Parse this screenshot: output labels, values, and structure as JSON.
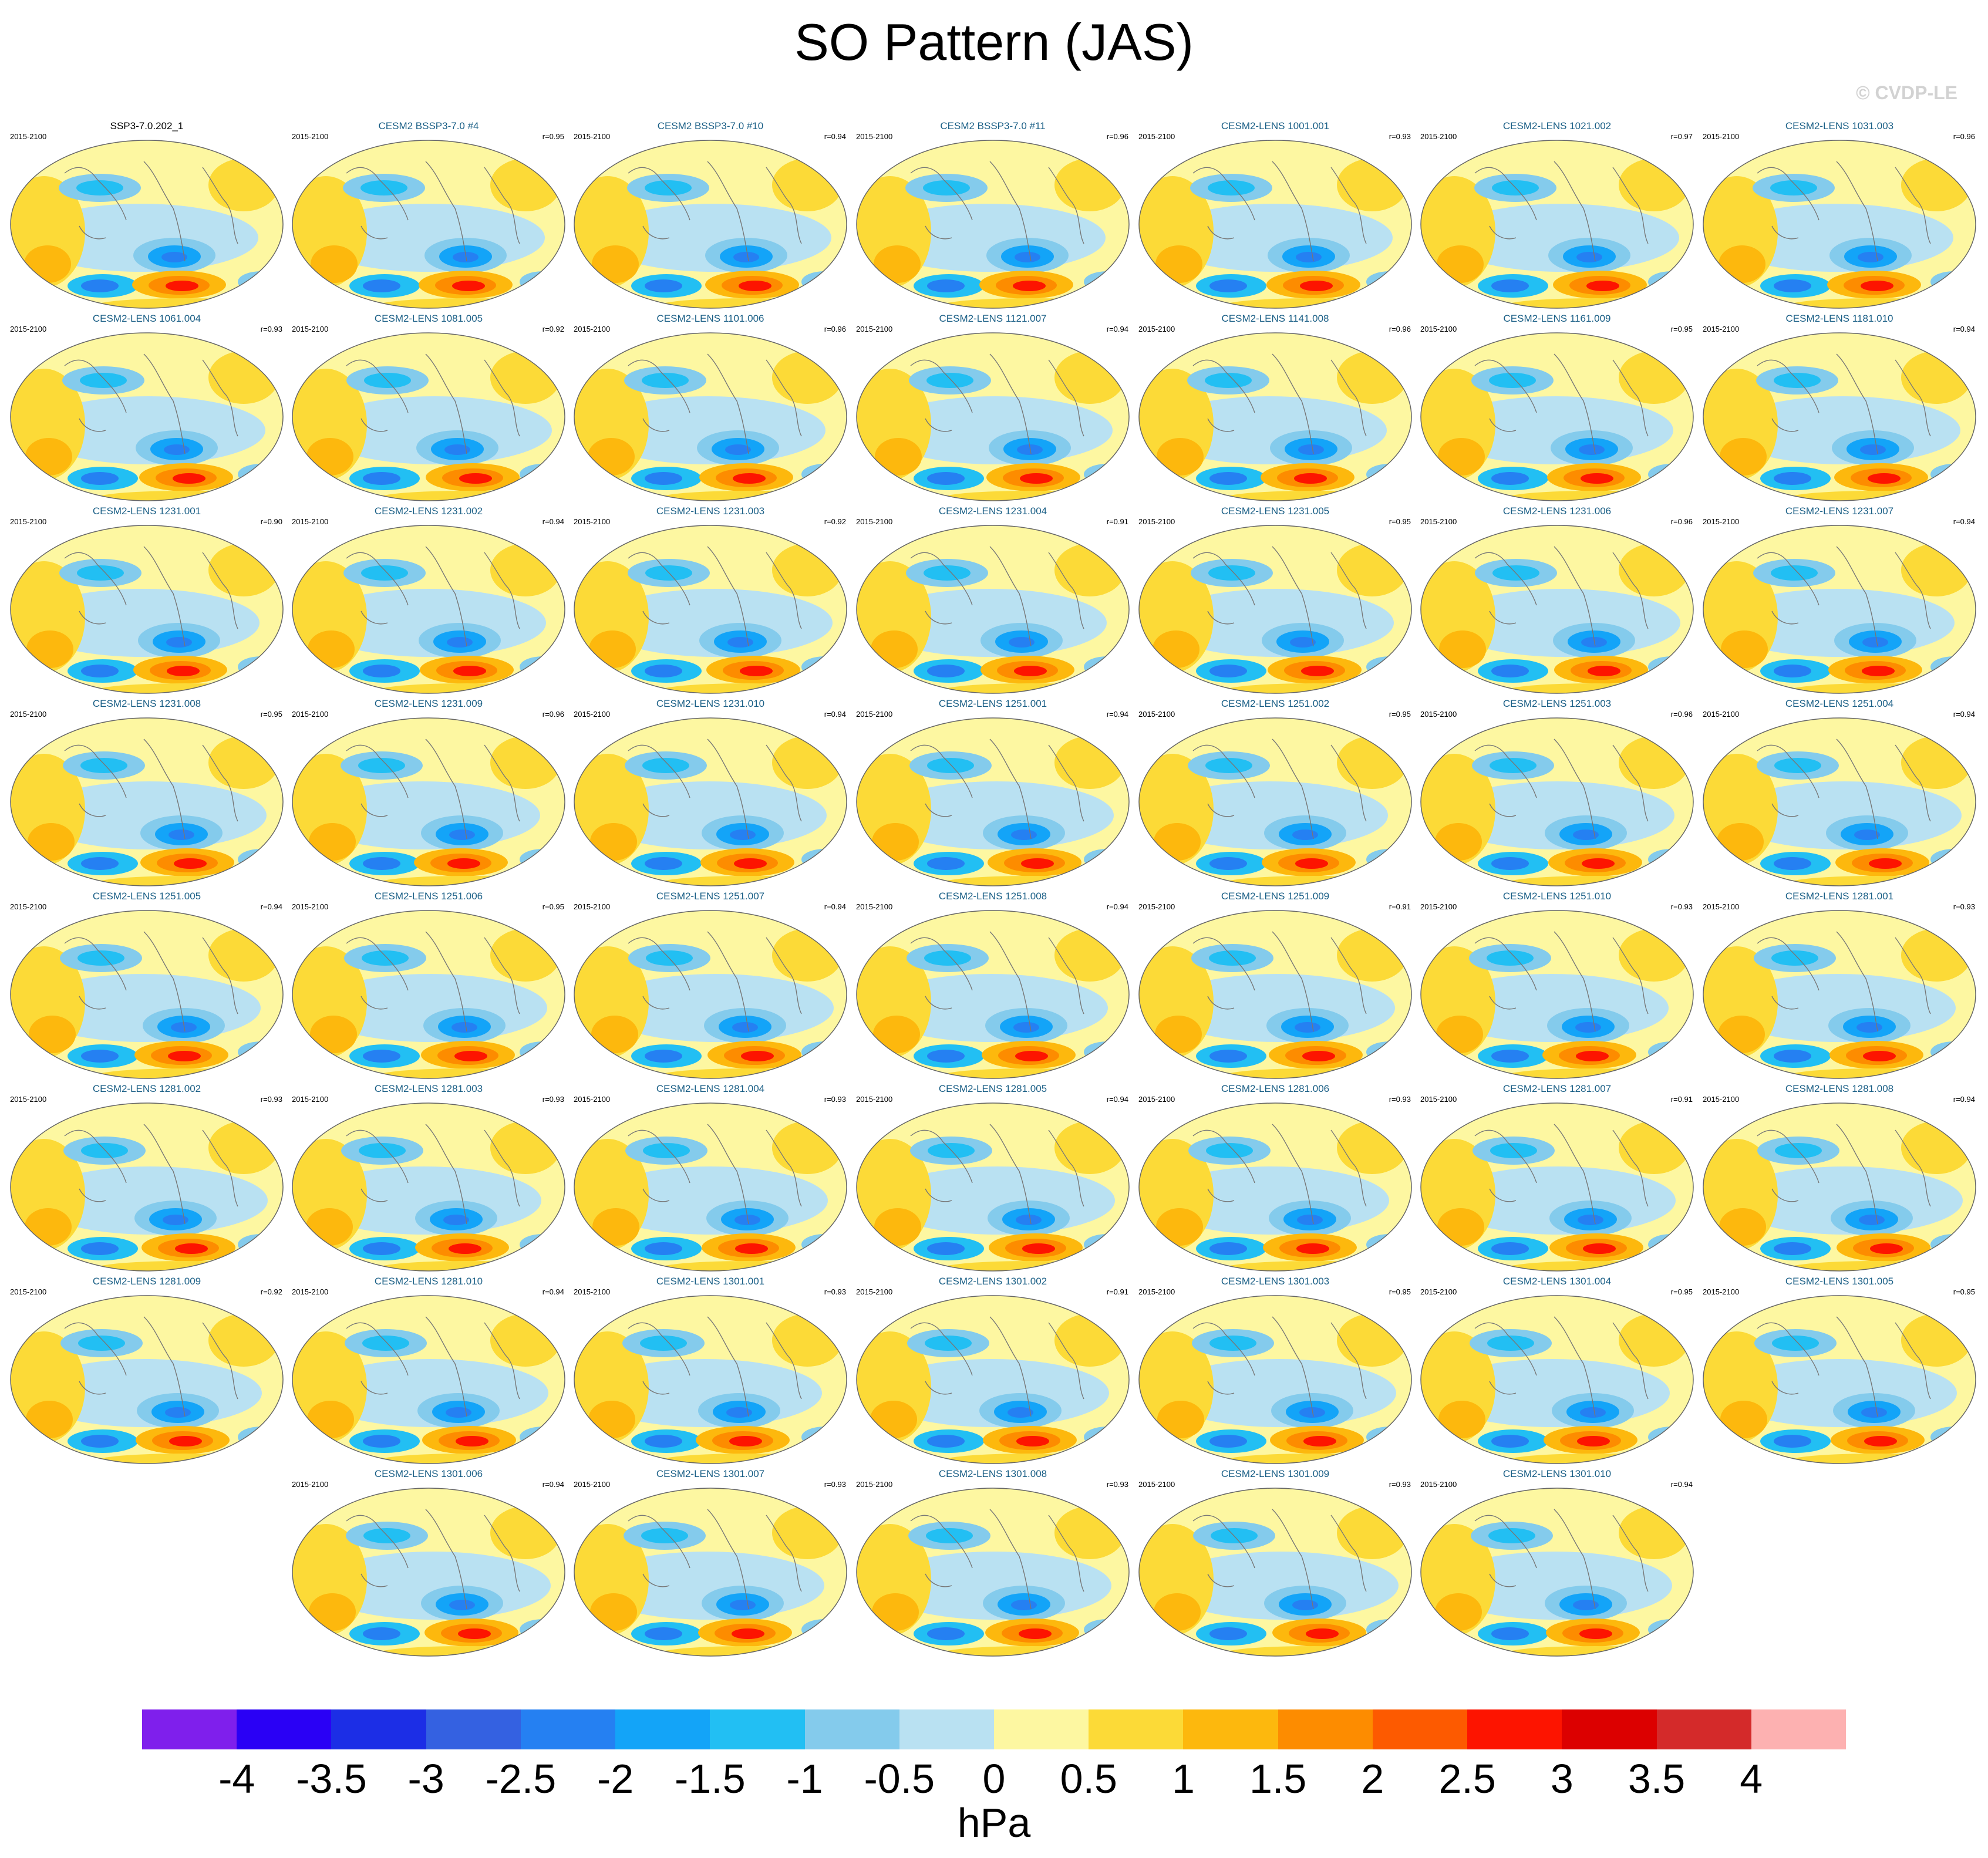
{
  "title": "SO Pattern (JAS)",
  "watermark": "© CVDP-LE",
  "years": "2015-2100",
  "panels": [
    {
      "title": "SSP3-7.0.202_1",
      "r": ""
    },
    {
      "title": "CESM2 BSSP3-7.0 #4",
      "r": "r=0.95"
    },
    {
      "title": "CESM2 BSSP3-7.0 #10",
      "r": "r=0.94"
    },
    {
      "title": "CESM2 BSSP3-7.0 #11",
      "r": "r=0.96"
    },
    {
      "title": "CESM2-LENS 1001.001",
      "r": "r=0.93"
    },
    {
      "title": "CESM2-LENS 1021.002",
      "r": "r=0.97"
    },
    {
      "title": "CESM2-LENS 1031.003",
      "r": "r=0.96"
    },
    {
      "title": "CESM2-LENS 1061.004",
      "r": "r=0.93"
    },
    {
      "title": "CESM2-LENS 1081.005",
      "r": "r=0.92"
    },
    {
      "title": "CESM2-LENS 1101.006",
      "r": "r=0.96"
    },
    {
      "title": "CESM2-LENS 1121.007",
      "r": "r=0.94"
    },
    {
      "title": "CESM2-LENS 1141.008",
      "r": "r=0.96"
    },
    {
      "title": "CESM2-LENS 1161.009",
      "r": "r=0.95"
    },
    {
      "title": "CESM2-LENS 1181.010",
      "r": "r=0.94"
    },
    {
      "title": "CESM2-LENS 1231.001",
      "r": "r=0.90"
    },
    {
      "title": "CESM2-LENS 1231.002",
      "r": "r=0.94"
    },
    {
      "title": "CESM2-LENS 1231.003",
      "r": "r=0.92"
    },
    {
      "title": "CESM2-LENS 1231.004",
      "r": "r=0.91"
    },
    {
      "title": "CESM2-LENS 1231.005",
      "r": "r=0.95"
    },
    {
      "title": "CESM2-LENS 1231.006",
      "r": "r=0.96"
    },
    {
      "title": "CESM2-LENS 1231.007",
      "r": "r=0.94"
    },
    {
      "title": "CESM2-LENS 1231.008",
      "r": "r=0.95"
    },
    {
      "title": "CESM2-LENS 1231.009",
      "r": "r=0.96"
    },
    {
      "title": "CESM2-LENS 1231.010",
      "r": "r=0.94"
    },
    {
      "title": "CESM2-LENS 1251.001",
      "r": "r=0.94"
    },
    {
      "title": "CESM2-LENS 1251.002",
      "r": "r=0.95"
    },
    {
      "title": "CESM2-LENS 1251.003",
      "r": "r=0.96"
    },
    {
      "title": "CESM2-LENS 1251.004",
      "r": "r=0.94"
    },
    {
      "title": "CESM2-LENS 1251.005",
      "r": "r=0.94"
    },
    {
      "title": "CESM2-LENS 1251.006",
      "r": "r=0.95"
    },
    {
      "title": "CESM2-LENS 1251.007",
      "r": "r=0.94"
    },
    {
      "title": "CESM2-LENS 1251.008",
      "r": "r=0.94"
    },
    {
      "title": "CESM2-LENS 1251.009",
      "r": "r=0.91"
    },
    {
      "title": "CESM2-LENS 1251.010",
      "r": "r=0.93"
    },
    {
      "title": "CESM2-LENS 1281.001",
      "r": "r=0.93"
    },
    {
      "title": "CESM2-LENS 1281.002",
      "r": "r=0.93"
    },
    {
      "title": "CESM2-LENS 1281.003",
      "r": "r=0.93"
    },
    {
      "title": "CESM2-LENS 1281.004",
      "r": "r=0.93"
    },
    {
      "title": "CESM2-LENS 1281.005",
      "r": "r=0.94"
    },
    {
      "title": "CESM2-LENS 1281.006",
      "r": "r=0.93"
    },
    {
      "title": "CESM2-LENS 1281.007",
      "r": "r=0.91"
    },
    {
      "title": "CESM2-LENS 1281.008",
      "r": "r=0.94"
    },
    {
      "title": "CESM2-LENS 1281.009",
      "r": "r=0.92"
    },
    {
      "title": "CESM2-LENS 1281.010",
      "r": "r=0.94"
    },
    {
      "title": "CESM2-LENS 1301.001",
      "r": "r=0.93"
    },
    {
      "title": "CESM2-LENS 1301.002",
      "r": "r=0.91"
    },
    {
      "title": "CESM2-LENS 1301.003",
      "r": "r=0.95"
    },
    {
      "title": "CESM2-LENS 1301.004",
      "r": "r=0.95"
    },
    {
      "title": "CESM2-LENS 1301.005",
      "r": "r=0.95"
    },
    {
      "title": "CESM2-LENS 1301.006",
      "r": "r=0.94"
    },
    {
      "title": "CESM2-LENS 1301.007",
      "r": "r=0.93"
    },
    {
      "title": "CESM2-LENS 1301.008",
      "r": "r=0.93"
    },
    {
      "title": "CESM2-LENS 1301.009",
      "r": "r=0.93"
    },
    {
      "title": "CESM2-LENS 1301.010",
      "r": "r=0.94"
    }
  ],
  "colorbar": {
    "unit": "hPa",
    "ticks": [
      "-4",
      "-3.5",
      "-3",
      "-2.5",
      "-2",
      "-1.5",
      "-1",
      "-0.5",
      "0",
      "0.5",
      "1",
      "1.5",
      "2",
      "2.5",
      "3",
      "3.5",
      "4"
    ],
    "colors": [
      "#7f1fec",
      "#2a00f5",
      "#1c2ee6",
      "#3461e1",
      "#2580f2",
      "#13a4f8",
      "#22bff3",
      "#84cbec",
      "#b9e1f2",
      "#fdf7a1",
      "#fcda37",
      "#fdb80d",
      "#fd8c00",
      "#fd5a00",
      "#fd1400",
      "#dc0000",
      "#d42a2a",
      "#fdb1b1"
    ]
  }
}
